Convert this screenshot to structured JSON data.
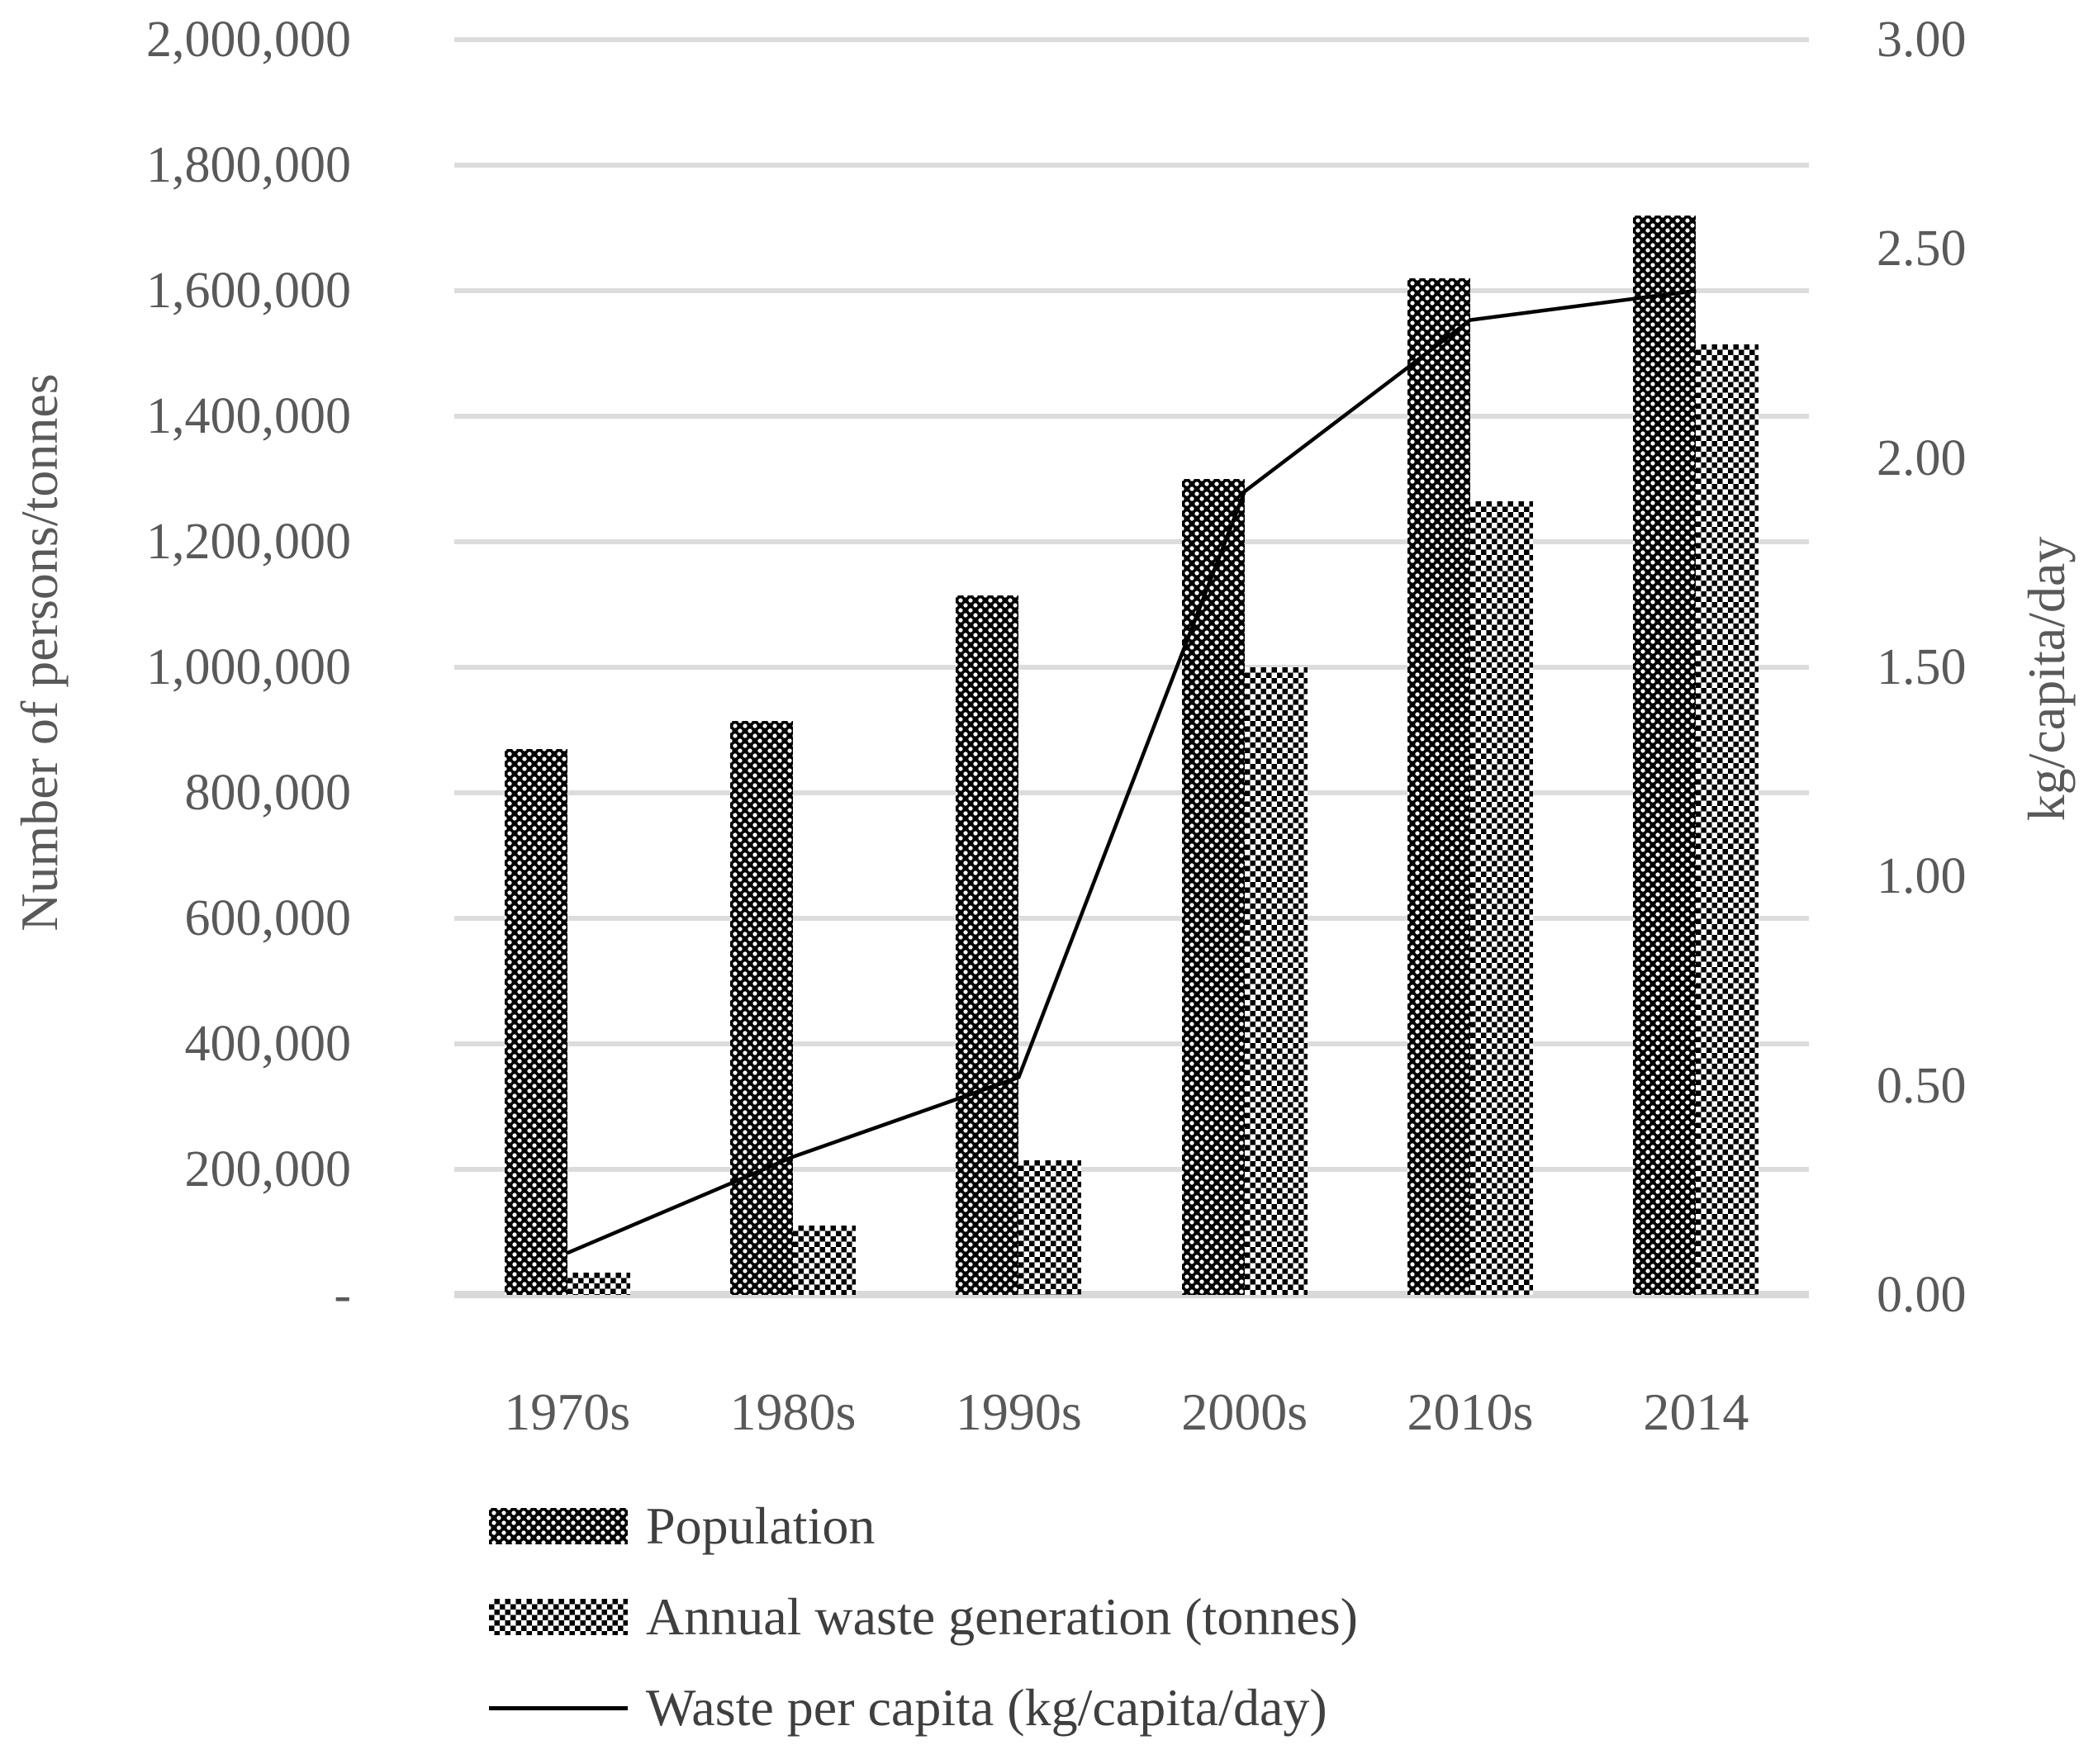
{
  "colors": {
    "background": "#ffffff",
    "grid": "#dcdcdc",
    "baseline": "#d9d9d9",
    "axis_text": "#595959",
    "legend_text": "#3f3f3f",
    "bar_black": "#000000",
    "line": "#000000"
  },
  "chart_data": {
    "type": "bar",
    "subtype": "combo-bar-line-dual-axis",
    "categories": [
      "1970s",
      "1980s",
      "1990s",
      "2000s",
      "2010s",
      "2014"
    ],
    "series": [
      {
        "name": "Population",
        "type": "bar",
        "axis": "left",
        "pattern": "black-white-dots",
        "values": [
          870000,
          915000,
          1115000,
          1300000,
          1620000,
          1720000
        ]
      },
      {
        "name": "Annual waste generation (tonnes)",
        "type": "bar",
        "axis": "left",
        "pattern": "black-white-checkerboard",
        "values": [
          35000,
          110000,
          215000,
          1000000,
          1265000,
          1515000
        ]
      },
      {
        "name": "Waste per capita (kg/capita/day)",
        "type": "line",
        "axis": "right",
        "color": "#000000",
        "values": [
          0.1,
          0.33,
          0.52,
          1.92,
          2.33,
          2.4
        ]
      }
    ],
    "left_axis": {
      "title": "Number of persons/tonnes",
      "min": 0,
      "max": 2000000,
      "step": 200000,
      "tick_labels": [
        "2,000,000",
        "1,800,000",
        "1,600,000",
        "1,400,000",
        "1,200,000",
        "1,000,000",
        "800,000",
        "600,000",
        "400,000",
        "200,000",
        "-"
      ]
    },
    "right_axis": {
      "title": "kg/capita/day",
      "min": 0,
      "max": 3,
      "step": 0.5,
      "tick_labels": [
        "3.00",
        "2.50",
        "2.00",
        "1.50",
        "1.00",
        "0.50",
        "0.00"
      ]
    },
    "grid": true,
    "legend_position": "bottom-left"
  }
}
